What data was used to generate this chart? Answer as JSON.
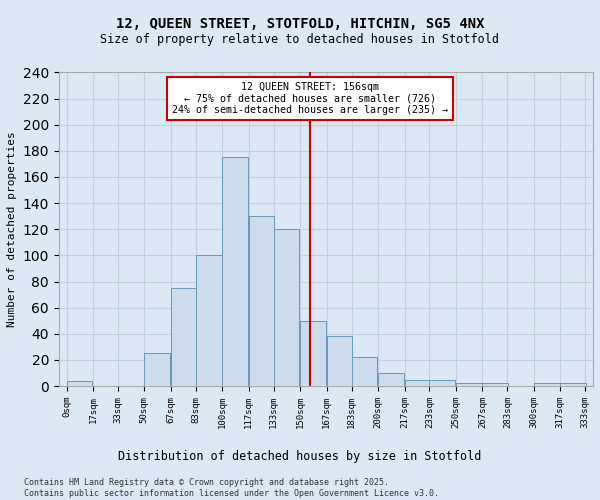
{
  "title1": "12, QUEEN STREET, STOTFOLD, HITCHIN, SG5 4NX",
  "title2": "Size of property relative to detached houses in Stotfold",
  "xlabel": "Distribution of detached houses by size in Stotfold",
  "ylabel": "Number of detached properties",
  "footer": "Contains HM Land Registry data © Crown copyright and database right 2025.\nContains public sector information licensed under the Open Government Licence v3.0.",
  "annotation_line1": "12 QUEEN STREET: 156sqm",
  "annotation_line2": "← 75% of detached houses are smaller (726)",
  "annotation_line3": "24% of semi-detached houses are larger (235) →",
  "property_size": 156,
  "bin_starts": [
    0,
    17,
    33,
    50,
    67,
    83,
    100,
    117,
    133,
    150,
    167,
    183,
    200,
    217,
    233,
    250,
    267,
    283,
    300,
    317
  ],
  "bin_labels": [
    "0sqm",
    "17sqm",
    "33sqm",
    "50sqm",
    "67sqm",
    "83sqm",
    "100sqm",
    "117sqm",
    "133sqm",
    "150sqm",
    "167sqm",
    "183sqm",
    "200sqm",
    "217sqm",
    "233sqm",
    "250sqm",
    "267sqm",
    "283sqm",
    "300sqm",
    "317sqm",
    "333sqm"
  ],
  "bar_heights": [
    4,
    0,
    0,
    25,
    75,
    100,
    175,
    130,
    120,
    50,
    38,
    22,
    10,
    5,
    5,
    2,
    2,
    0,
    2,
    2
  ],
  "bar_color": "#ccdcec",
  "bar_edge_color": "#6699bb",
  "grid_color": "#c0d0e0",
  "bg_color": "#dce8f4",
  "vline_color": "#cc0000",
  "annotation_box_edge": "#cc0000",
  "ylim": [
    0,
    240
  ],
  "xlim_left": -5,
  "xlim_right": 338
}
